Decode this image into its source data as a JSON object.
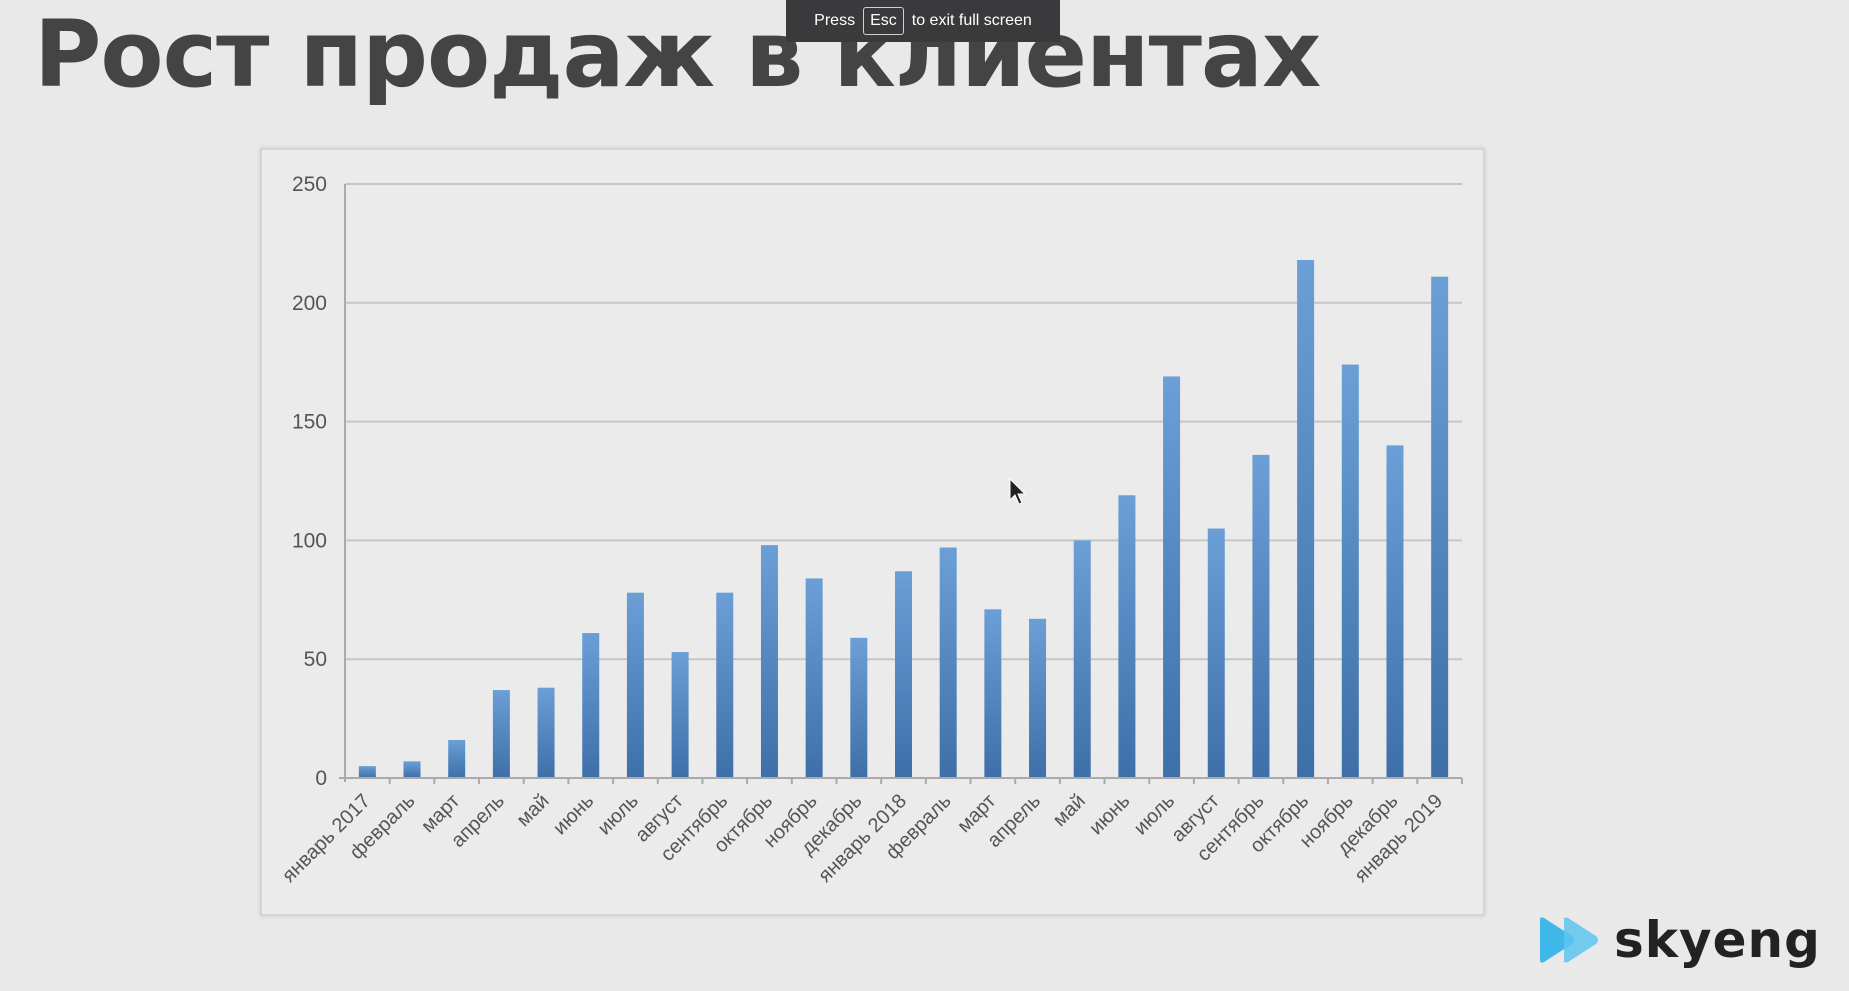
{
  "slide": {
    "title": "Рост продаж в клиентах"
  },
  "fullscreen_banner": {
    "press": "Press",
    "key": "Esc",
    "message": "to exit full screen"
  },
  "logo": {
    "text": "skyeng"
  },
  "colors": {
    "bar": "#4a80be",
    "bar_light": "#6b9fd6",
    "background": "#e9e9e9",
    "title": "#444444",
    "grid": "#c8c8c8"
  },
  "chart_data": {
    "type": "bar",
    "categories": [
      "январь 2017",
      "февраль",
      "март",
      "апрель",
      "май",
      "июнь",
      "июль",
      "август",
      "сентябрь",
      "октябрь",
      "ноябрь",
      "декабрь",
      "январь 2018",
      "февраль",
      "март",
      "апрель",
      "май",
      "июнь",
      "июль",
      "август",
      "сентябрь",
      "октябрь",
      "ноябрь",
      "декабрь",
      "январь 2019"
    ],
    "values": [
      5,
      7,
      16,
      37,
      38,
      61,
      78,
      53,
      78,
      98,
      84,
      59,
      87,
      97,
      71,
      67,
      100,
      119,
      169,
      105,
      136,
      218,
      174,
      140,
      211
    ],
    "ylim": [
      0,
      250
    ],
    "yticks": [
      0,
      50,
      100,
      150,
      200,
      250
    ],
    "grid": true,
    "legend": "none"
  }
}
